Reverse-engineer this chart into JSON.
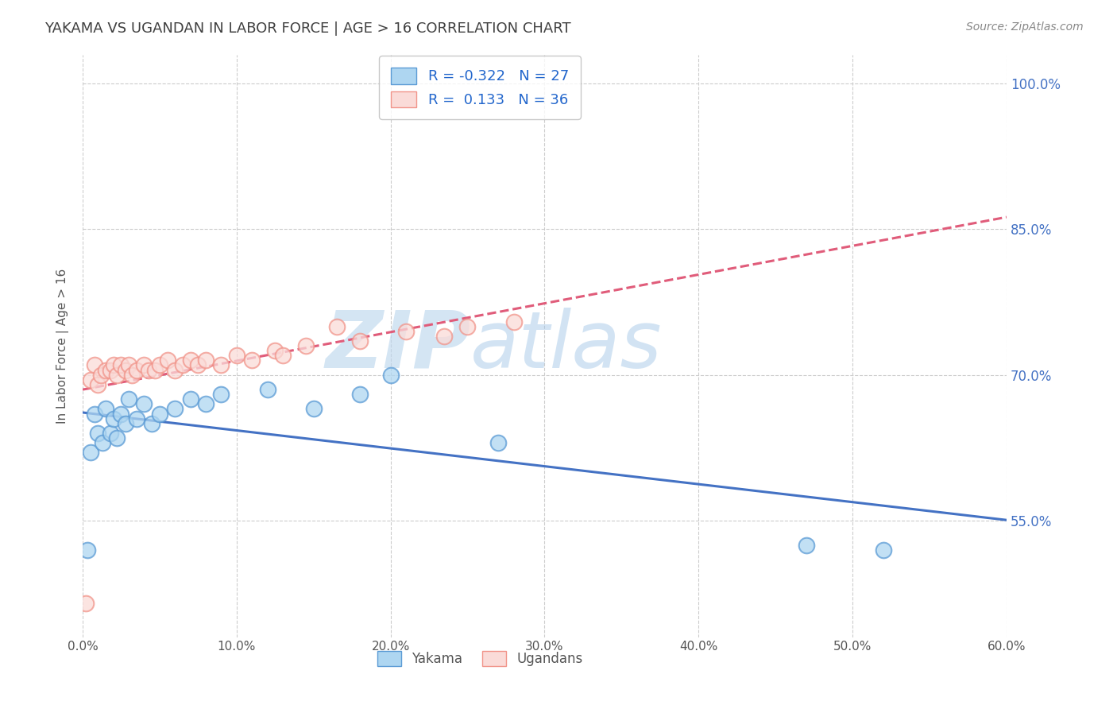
{
  "title": "YAKAMA VS UGANDAN IN LABOR FORCE | AGE > 16 CORRELATION CHART",
  "source_text": "Source: ZipAtlas.com",
  "xlabel_values": [
    0.0,
    10.0,
    20.0,
    30.0,
    40.0,
    50.0,
    60.0
  ],
  "ylabel_values": [
    55.0,
    70.0,
    85.0,
    100.0
  ],
  "xmin": 0.0,
  "xmax": 60.0,
  "ymin": 43.0,
  "ymax": 103.0,
  "yakama_R": -0.322,
  "yakama_N": 27,
  "ugandan_R": 0.133,
  "ugandan_N": 36,
  "yakama_face_color": "#AED6F1",
  "ugandan_face_color": "#FADBD8",
  "yakama_edge_color": "#5B9BD5",
  "ugandan_edge_color": "#F1948A",
  "yakama_line_color": "#4472C4",
  "ugandan_line_color": "#E05C7A",
  "legend_label_yakama": "Yakama",
  "legend_label_ugandan": "Ugandans",
  "ylabel": "In Labor Force | Age > 16",
  "watermark_zip": "ZIP",
  "watermark_atlas": "atlas",
  "grid_color": "#CCCCCC",
  "background_color": "#FFFFFF",
  "title_color": "#404040",
  "source_color": "#888888",
  "yakama_x": [
    0.3,
    0.5,
    0.8,
    1.0,
    1.3,
    1.5,
    1.8,
    2.0,
    2.2,
    2.5,
    2.8,
    3.0,
    3.5,
    4.0,
    4.5,
    5.0,
    6.0,
    7.0,
    8.0,
    9.0,
    12.0,
    15.0,
    18.0,
    20.0,
    27.0,
    47.0,
    52.0
  ],
  "yakama_y": [
    52.0,
    62.0,
    66.0,
    64.0,
    63.0,
    66.5,
    64.0,
    65.5,
    63.5,
    66.0,
    65.0,
    67.5,
    65.5,
    67.0,
    65.0,
    66.0,
    66.5,
    67.5,
    67.0,
    68.0,
    68.5,
    66.5,
    68.0,
    70.0,
    63.0,
    52.5,
    52.0
  ],
  "ugandan_x": [
    0.2,
    0.5,
    0.8,
    1.0,
    1.2,
    1.5,
    1.8,
    2.0,
    2.2,
    2.5,
    2.8,
    3.0,
    3.2,
    3.5,
    4.0,
    4.3,
    4.7,
    5.0,
    5.5,
    6.0,
    6.5,
    7.0,
    7.5,
    8.0,
    9.0,
    10.0,
    11.0,
    12.5,
    13.0,
    14.5,
    16.5,
    18.0,
    21.0,
    23.5,
    25.0,
    28.0
  ],
  "ugandan_y": [
    46.5,
    69.5,
    71.0,
    69.0,
    70.0,
    70.5,
    70.5,
    71.0,
    70.0,
    71.0,
    70.5,
    71.0,
    70.0,
    70.5,
    71.0,
    70.5,
    70.5,
    71.0,
    71.5,
    70.5,
    71.0,
    71.5,
    71.0,
    71.5,
    71.0,
    72.0,
    71.5,
    72.5,
    72.0,
    73.0,
    75.0,
    73.5,
    74.5,
    74.0,
    75.0,
    75.5
  ]
}
